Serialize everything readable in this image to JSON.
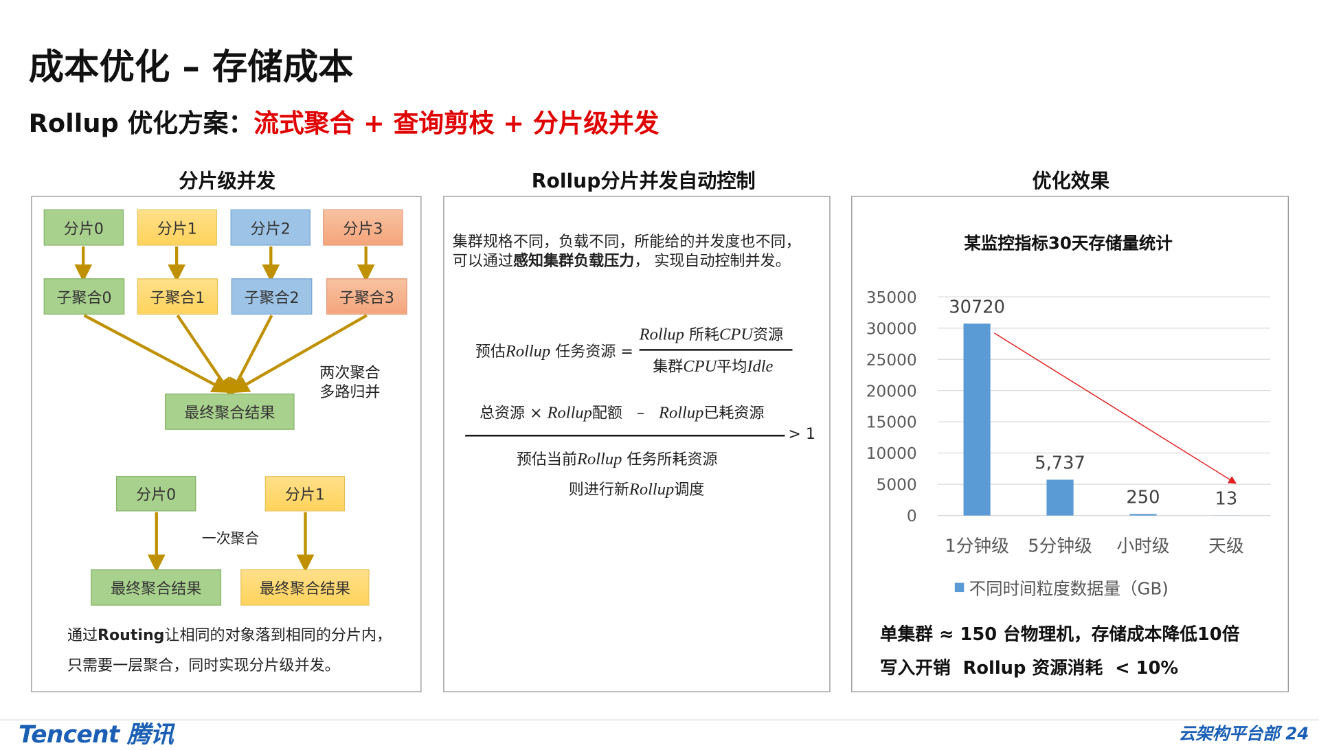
{
  "title": "成本优化 – 存储成本",
  "subtitle": {
    "prefix": "Rollup 优化方案：",
    "highlight": "流式聚合 + 查询剪枝 + 分片级并发"
  },
  "colors": {
    "accent_red": "#e00000",
    "arrow_gold": "#bf9000",
    "bar_blue": "#5b9bd5",
    "trend_red": "#e02020",
    "brand_blue": "#1a5fb4"
  },
  "left": {
    "heading": "分片级并发",
    "shards": [
      "分片0",
      "分片1",
      "分片2",
      "分片3"
    ],
    "subaggs": [
      "子聚合0",
      "子聚合1",
      "子聚合2",
      "子聚合3"
    ],
    "final": "最终聚合结果",
    "note_line1": "两次聚合",
    "note_line2": "多路归并",
    "bottom_shards": [
      "分片0",
      "分片1"
    ],
    "single_agg": "一次聚合",
    "bottom_finals": [
      "最终聚合结果",
      "最终聚合结果"
    ],
    "desc_line1_pre": "通过",
    "desc_line1_bold": "Routing",
    "desc_line1_post": "让相同的对象落到相同的分片内，",
    "desc_line2": "只需要一层聚合，同时实现分片级并发。"
  },
  "middle": {
    "heading": "Rollup分片并发自动控制",
    "intro_line1": "集群规格不同，负载不同，所能给的并发度也不同，",
    "intro_line2_pre": "可以通过",
    "intro_line2_bold": "感知集群负载压力",
    "intro_line2_post": "，  实现自动控制并发。",
    "f1_lhs_pre": "预估",
    "f1_lhs_it": "Rollup",
    "f1_lhs_post": " 任务资源 =",
    "f1_num_it": "Rollup",
    "f1_num_a": " 所耗",
    "f1_num_it2": "CPU",
    "f1_num_b": "资源",
    "f1_den_a": "集群",
    "f1_den_it": "CPU",
    "f1_den_b": "平均",
    "f1_den_it2": "Idle",
    "f2_num_a": "总资源 × ",
    "f2_num_it": "Rollup",
    "f2_num_b": "配额   –   ",
    "f2_num_it2": "Rollup",
    "f2_num_c": "已耗资源",
    "f2_gt": "> 1",
    "f2_den_a": "预估当前",
    "f2_den_it": "Rollup",
    "f2_den_b": " 任务所耗资源",
    "f2_then_a": "则进行新",
    "f2_then_it": "Rollup",
    "f2_then_b": "调度"
  },
  "right": {
    "heading": "优化效果",
    "summary_line1": "单集群 ≈ 150 台物理机，存储成本降低10倍",
    "summary_line2": "写入开销  Rollup 资源消耗  < 10%"
  },
  "chart_data": {
    "type": "bar",
    "title": "某监控指标30天存储量统计",
    "categories": [
      "1分钟级",
      "5分钟级",
      "小时级",
      "天级"
    ],
    "series": [
      {
        "name": "不同时间粒度数据量（GB)",
        "values": [
          30720,
          5737,
          250,
          13
        ]
      }
    ],
    "data_labels": [
      "30720",
      "5,737",
      "250",
      "13"
    ],
    "yticks": [
      "0",
      "5000",
      "10000",
      "15000",
      "20000",
      "25000",
      "30000",
      "35000"
    ],
    "ylim": [
      0,
      35000
    ],
    "grid": true,
    "legend": "bottom",
    "annotation": "red downward trend arrow from 1分钟级 to 天级"
  },
  "footer": {
    "logo": "Tencent 腾讯",
    "dept": "云架构平台部 24"
  }
}
